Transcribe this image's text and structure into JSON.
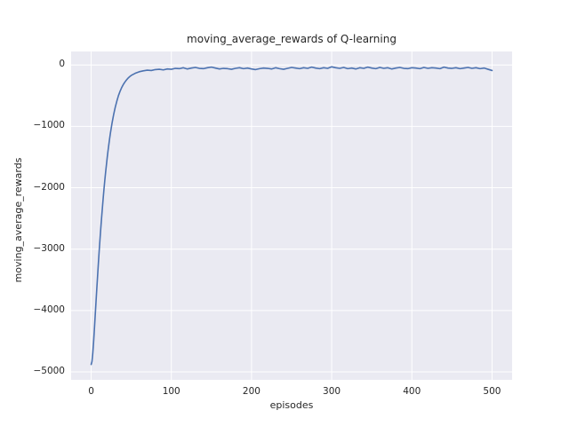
{
  "chart_data": {
    "type": "line",
    "title": "moving_average_rewards of Q-learning",
    "xlabel": "episodes",
    "ylabel": "moving_average_rewards",
    "xlim": [
      -25,
      525
    ],
    "ylim": [
      -5130,
      220
    ],
    "xtick_values": [
      0,
      100,
      200,
      300,
      400,
      500
    ],
    "xtick_labels": [
      "0",
      "100",
      "200",
      "300",
      "400",
      "500"
    ],
    "ytick_values": [
      0,
      -1000,
      -2000,
      -3000,
      -4000,
      -5000
    ],
    "ytick_labels": [
      "0",
      "−1000",
      "−2000",
      "−3000",
      "−4000",
      "−5000"
    ],
    "grid": true,
    "legend_visible": false,
    "line_color": "#4c72b0",
    "plot_background_color": "#eaeaf2",
    "grid_color": "#ffffff",
    "figure_background_color": "#ffffff",
    "series": [
      {
        "name": "moving_average_rewards",
        "x": [
          0,
          1,
          2,
          3,
          4,
          5,
          6,
          7,
          8,
          9,
          10,
          11,
          12,
          13,
          14,
          15,
          16,
          17,
          18,
          19,
          20,
          21,
          22,
          23,
          24,
          25,
          26,
          27,
          28,
          29,
          30,
          32,
          34,
          36,
          38,
          40,
          42,
          44,
          46,
          48,
          50,
          55,
          60,
          65,
          70,
          75,
          80,
          85,
          90,
          95,
          100,
          105,
          110,
          115,
          120,
          125,
          130,
          135,
          140,
          145,
          150,
          155,
          160,
          165,
          170,
          175,
          180,
          185,
          190,
          195,
          200,
          205,
          210,
          215,
          220,
          225,
          230,
          235,
          240,
          245,
          250,
          255,
          260,
          265,
          270,
          275,
          280,
          285,
          290,
          295,
          300,
          305,
          310,
          315,
          320,
          325,
          330,
          335,
          340,
          345,
          350,
          355,
          360,
          365,
          370,
          375,
          380,
          385,
          390,
          395,
          400,
          405,
          410,
          415,
          420,
          425,
          430,
          435,
          440,
          445,
          450,
          455,
          460,
          465,
          470,
          475,
          480,
          485,
          490,
          495,
          500
        ],
        "y": [
          -4880,
          -4830,
          -4700,
          -4520,
          -4310,
          -4090,
          -3870,
          -3650,
          -3440,
          -3230,
          -3030,
          -2840,
          -2660,
          -2490,
          -2330,
          -2170,
          -2020,
          -1880,
          -1750,
          -1630,
          -1510,
          -1400,
          -1300,
          -1200,
          -1110,
          -1030,
          -950,
          -880,
          -810,
          -750,
          -690,
          -590,
          -500,
          -430,
          -370,
          -320,
          -280,
          -245,
          -215,
          -190,
          -170,
          -135,
          -110,
          -95,
          -85,
          -90,
          -75,
          -70,
          -80,
          -65,
          -70,
          -55,
          -60,
          -45,
          -65,
          -50,
          -40,
          -55,
          -60,
          -45,
          -35,
          -50,
          -65,
          -55,
          -60,
          -70,
          -55,
          -45,
          -60,
          -50,
          -65,
          -75,
          -60,
          -50,
          -55,
          -65,
          -45,
          -60,
          -70,
          -55,
          -40,
          -50,
          -60,
          -45,
          -55,
          -35,
          -50,
          -60,
          -45,
          -55,
          -30,
          -45,
          -55,
          -40,
          -60,
          -50,
          -65,
          -45,
          -55,
          -35,
          -50,
          -60,
          -40,
          -55,
          -45,
          -65,
          -50,
          -40,
          -55,
          -60,
          -45,
          -50,
          -60,
          -40,
          -55,
          -45,
          -50,
          -60,
          -35,
          -50,
          -55,
          -45,
          -60,
          -50,
          -40,
          -55,
          -45,
          -60,
          -50,
          -70,
          -90
        ]
      }
    ]
  }
}
